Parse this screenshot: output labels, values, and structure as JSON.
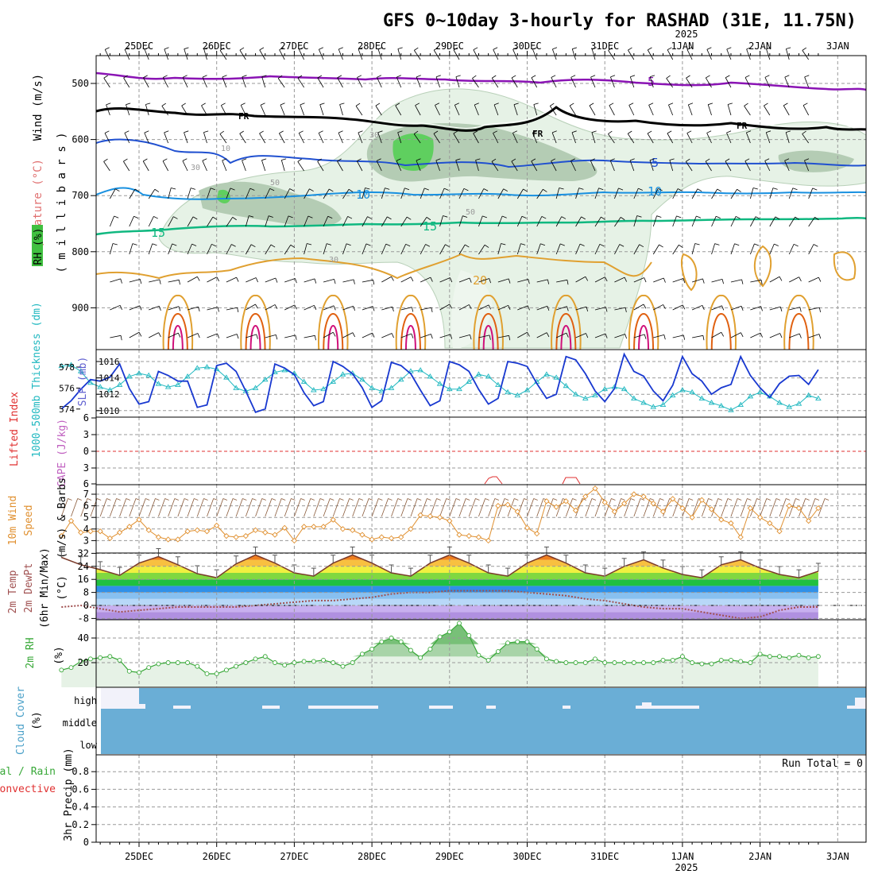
{
  "title": "GFS 0~10day 3-hourly for RASHAD (31E, 11.75N)",
  "top_year": "2025",
  "bottom_year": "2025",
  "date_labels": [
    "25DEC",
    "26DEC",
    "27DEC",
    "28DEC",
    "29DEC",
    "30DEC",
    "31DEC",
    "1JAN",
    "2JAN",
    "3JAN"
  ],
  "colors": {
    "temp_purple": "#8a14b4",
    "temp_black": "#000000",
    "temp_blue": "#2050d0",
    "temp_lightblue": "#1890e0",
    "temp_green": "#10b880",
    "temp_orange": "#e0a030",
    "temp_red": "#e06010",
    "temp_magenta": "#d0107a",
    "rh_light": "#e6f2e6",
    "rh_mid": "#b4ccb4",
    "rh_dark": "#5fcf5f",
    "slp": "#1838d0",
    "thickness": "#20b8c0",
    "lifted_index": "#e03030",
    "wind10": "#e09030",
    "dewpoint": "#a05050",
    "rh2m": "#38a838",
    "cloud": "#6aaed6",
    "cloud_gap": "#f0f0f8"
  },
  "panels": {
    "upper": {
      "labels": {
        "wind": "Wind (m/s)",
        "temperature": "Temperature (°C)",
        "rh": "RH (%)",
        "millibars": "( m i l l i b a r s )"
      },
      "y_ticks": [
        "500",
        "600",
        "700",
        "800",
        "900"
      ],
      "contour_labels": {
        "fr": "FR",
        "t5": "5",
        "t10": "10",
        "t15": "15",
        "t20": "20",
        "rh10": "10",
        "rh30": "30",
        "rh50": "50"
      }
    },
    "slp": {
      "labels": {
        "thickness": "1000-500mb Thickness (dm)",
        "slp": "SLP (mb)"
      },
      "thickness_ticks": [
        "578",
        "576",
        "574"
      ],
      "slp_ticks": [
        "1016",
        "1014",
        "1012",
        "1010"
      ]
    },
    "li": {
      "labels": {
        "li": "Lifted Index",
        "cape": "CAPE (J/kg)"
      },
      "ticks": [
        "6",
        "3",
        "0",
        "3",
        "6"
      ]
    },
    "wind10": {
      "labels": {
        "title": "10m Wind",
        "speed": "Speed",
        "barbs": "(m/s) & Barbs"
      },
      "ticks": [
        "7",
        "6",
        "5",
        "4",
        "3"
      ]
    },
    "temp2m": {
      "labels": {
        "t": "2m Temp",
        "d": "2m DewPt",
        "m": "(6hr Min/Max)",
        "unit": "(°C)"
      },
      "ticks": [
        "32",
        "24",
        "16",
        "8",
        "0",
        "-8"
      ]
    },
    "rh2m": {
      "labels": {
        "title": "2m RH",
        "unit": "(%)"
      },
      "ticks": [
        "40",
        "20"
      ]
    },
    "cloud": {
      "labels": {
        "title": "Cloud Cover",
        "unit": "(%)"
      },
      "levels": [
        "high",
        "middle",
        "low"
      ]
    },
    "precip": {
      "labels": {
        "total": "Total / Rain",
        "conv": "Convective",
        "title": "3hr Precip (mm)"
      },
      "run_total": "Run Total = 0",
      "ticks": [
        "0.8",
        "0.6",
        "0.4",
        "0.2",
        "0"
      ]
    }
  },
  "chart_data": [
    {
      "type": "line",
      "title": "SLP (mb)",
      "x_unit": "forecast hour from 00Z 24DEC 2024",
      "x": [
        12,
        15,
        18,
        21,
        24,
        27,
        30,
        33,
        36,
        39,
        42,
        45,
        48,
        51,
        54,
        57,
        60,
        63,
        66,
        69,
        72,
        75,
        78,
        81,
        84,
        87,
        90,
        93,
        96,
        99,
        102,
        105,
        108,
        111,
        114,
        117,
        120,
        123,
        126,
        129,
        132,
        135,
        138,
        141,
        144,
        147,
        150,
        153,
        156,
        159,
        162,
        165,
        168,
        171,
        174,
        177,
        180,
        183,
        186,
        189,
        192,
        195,
        198,
        201,
        204,
        207,
        210,
        213,
        216,
        219,
        222,
        225,
        228,
        231,
        234,
        237,
        240,
        243,
        246
      ],
      "series": [
        {
          "name": "SLP",
          "values": [
            1010.2,
            1011.2,
            1012.6,
            1013.8,
            1013.6,
            1014.1,
            1015.7,
            1012.7,
            1010.8,
            1011.1,
            1014.8,
            1014.3,
            1013.6,
            1013.6,
            1010.4,
            1010.7,
            1015.5,
            1015.8,
            1014.8,
            1012.4,
            1009.8,
            1010.2,
            1015.7,
            1015.2,
            1014.4,
            1012.2,
            1010.6,
            1011.1,
            1016.0,
            1015.4,
            1014.5,
            1012.8,
            1010.4,
            1011.2,
            1015.9,
            1015.5,
            1014.5,
            1012.5,
            1010.6,
            1011.2,
            1016.0,
            1015.6,
            1014.8,
            1012.6,
            1010.8,
            1011.5,
            1016.0,
            1015.8,
            1015.4,
            1013.3,
            1011.5,
            1012.0,
            1016.6,
            1016.2,
            1014.5,
            1012.4,
            1011.1,
            1012.7,
            1016.9,
            1014.8,
            1014.2,
            1012.4,
            1011.2,
            1013.1,
            1016.6,
            1014.5,
            1013.6,
            1012.0,
            1012.8,
            1013.2,
            1016.6,
            1014.3,
            1012.8,
            1011.6,
            1013.3,
            1014.2,
            1014.3,
            1013.2,
            1015.0
          ]
        }
      ],
      "ylim": [
        1009.5,
        1017.5
      ]
    },
    {
      "type": "line",
      "title": "1000-500mb Thickness (dm)",
      "x_unit": "forecast hour from 00Z 24DEC 2024",
      "x": [
        12,
        15,
        18,
        21,
        24,
        27,
        30,
        33,
        36,
        39,
        42,
        45,
        48,
        51,
        54,
        57,
        60,
        63,
        66,
        69,
        72,
        75,
        78,
        81,
        84,
        87,
        90,
        93,
        96,
        99,
        102,
        105,
        108,
        111,
        114,
        117,
        120,
        123,
        126,
        129,
        132,
        135,
        138,
        141,
        144,
        147,
        150,
        153,
        156,
        159,
        162,
        165,
        168,
        171,
        174,
        177,
        180,
        183,
        186,
        189,
        192,
        195,
        198,
        201,
        204,
        207,
        210,
        213,
        216,
        219,
        222,
        225,
        228,
        231,
        234,
        237,
        240,
        243,
        246
      ],
      "series": [
        {
          "name": "Thickness",
          "values": [
            578.1,
            578.2,
            577.6,
            576.5,
            576.1,
            575.8,
            576.3,
            577.1,
            577.4,
            577.2,
            576.4,
            576.1,
            576.3,
            577.1,
            577.9,
            578.0,
            577.8,
            577.0,
            576.0,
            575.7,
            576.0,
            576.8,
            577.5,
            577.7,
            577.4,
            576.6,
            575.8,
            575.9,
            576.6,
            577.3,
            577.4,
            576.8,
            576.0,
            575.7,
            576.0,
            576.8,
            577.6,
            577.7,
            577.1,
            576.4,
            575.9,
            575.9,
            576.6,
            577.3,
            577.1,
            576.3,
            575.6,
            575.3,
            575.8,
            576.6,
            577.3,
            577.0,
            576.2,
            575.4,
            575.0,
            575.3,
            575.9,
            576.1,
            575.9,
            575.0,
            574.6,
            574.2,
            574.4,
            575.3,
            575.8,
            575.6,
            575.0,
            574.6,
            574.3,
            573.9,
            574.4,
            575.2,
            575.6,
            575.2,
            574.6,
            574.2,
            574.5,
            575.3,
            575.0
          ]
        }
      ],
      "ylim": [
        573.4,
        579.0
      ]
    },
    {
      "type": "line",
      "title": "10m Wind Speed (m/s)",
      "x_unit": "forecast hour from 00Z 24DEC 2024",
      "x": [
        12,
        15,
        18,
        21,
        24,
        27,
        30,
        33,
        36,
        39,
        42,
        45,
        48,
        51,
        54,
        57,
        60,
        63,
        66,
        69,
        72,
        75,
        78,
        81,
        84,
        87,
        90,
        93,
        96,
        99,
        102,
        105,
        108,
        111,
        114,
        117,
        120,
        123,
        126,
        129,
        132,
        135,
        138,
        141,
        144,
        147,
        150,
        153,
        156,
        159,
        162,
        165,
        168,
        171,
        174,
        177,
        180,
        183,
        186,
        189,
        192,
        195,
        198,
        201,
        204,
        207,
        210,
        213,
        216,
        219,
        222,
        225,
        228,
        231,
        234,
        237,
        240,
        243,
        246
      ],
      "series": [
        {
          "name": "10m Wind",
          "values": [
            3.4,
            4.7,
            3.7,
            3.8,
            3.8,
            3.2,
            3.7,
            4.2,
            4.8,
            3.9,
            3.3,
            3.1,
            3.1,
            3.8,
            3.9,
            3.8,
            4.3,
            3.4,
            3.3,
            3.4,
            3.9,
            3.7,
            3.5,
            4.1,
            3.0,
            4.2,
            4.2,
            4.2,
            4.8,
            4.0,
            3.9,
            3.5,
            3.1,
            3.3,
            3.2,
            3.3,
            4.0,
            5.2,
            5.1,
            5.0,
            4.7,
            3.5,
            3.4,
            3.3,
            3.0,
            6.0,
            6.1,
            5.5,
            4.1,
            3.6,
            6.4,
            5.9,
            6.4,
            5.6,
            6.8,
            7.5,
            6.3,
            5.5,
            6.2,
            7.0,
            6.8,
            6.2,
            5.5,
            6.6,
            5.8,
            5.0,
            6.5,
            5.7,
            4.8,
            4.5,
            3.3,
            5.8,
            5.0,
            4.5,
            3.8,
            6.0,
            5.8,
            4.7,
            5.8
          ]
        }
      ],
      "ylim": [
        2.6,
        7.8
      ]
    },
    {
      "type": "area",
      "title": "2m Temp (°C)",
      "x_unit": "forecast hour from 00Z 24DEC 2024",
      "x": [
        12,
        18,
        24,
        30,
        36,
        42,
        48,
        54,
        60,
        66,
        72,
        78,
        84,
        90,
        96,
        102,
        108,
        114,
        120,
        126,
        132,
        138,
        144,
        150,
        156,
        162,
        168,
        174,
        180,
        186,
        192,
        198,
        204,
        210,
        216,
        222,
        228,
        234,
        240,
        246
      ],
      "series": [
        {
          "name": "2m Temp",
          "values": [
            29.5,
            25,
            22,
            18.5,
            26,
            30,
            25,
            19.5,
            17,
            25.5,
            31,
            26,
            20,
            18,
            26,
            31,
            26,
            20,
            18,
            26,
            31,
            26,
            20,
            18,
            26,
            31,
            26,
            20,
            18,
            24,
            28,
            23,
            19,
            17,
            25,
            28,
            23,
            19,
            17,
            21
          ]
        },
        {
          "name": "2m DewPt",
          "values": [
            -1,
            0,
            -2,
            -4,
            -3,
            -2,
            -1,
            -1,
            -1,
            -1,
            0,
            1,
            2,
            3,
            3,
            4,
            5,
            7,
            8,
            8,
            9,
            9,
            9,
            9,
            8,
            7,
            6,
            4,
            3,
            1,
            -1,
            -2,
            -2,
            -4,
            -6,
            -8,
            -7,
            -3,
            -1,
            -1
          ]
        }
      ],
      "ylim": [
        -12,
        34
      ]
    },
    {
      "type": "area",
      "title": "2m RH (%)",
      "x_unit": "forecast hour from 00Z 24DEC 2024",
      "x": [
        12,
        15,
        18,
        21,
        24,
        27,
        30,
        33,
        36,
        39,
        42,
        45,
        48,
        51,
        54,
        57,
        60,
        63,
        66,
        69,
        72,
        75,
        78,
        81,
        84,
        87,
        90,
        93,
        96,
        99,
        102,
        105,
        108,
        111,
        114,
        117,
        120,
        123,
        126,
        129,
        132,
        135,
        138,
        141,
        144,
        147,
        150,
        153,
        156,
        159,
        162,
        165,
        168,
        171,
        174,
        177,
        180,
        183,
        186,
        189,
        192,
        195,
        198,
        201,
        204,
        207,
        210,
        213,
        216,
        219,
        222,
        225,
        228,
        231,
        234,
        237,
        240,
        243,
        246
      ],
      "series": [
        {
          "name": "2m RH",
          "values": [
            14,
            16,
            21,
            23,
            24,
            25,
            22,
            13,
            12,
            16,
            19,
            20,
            20,
            20,
            17,
            11,
            11,
            14,
            17,
            20,
            23,
            25,
            20,
            18,
            20,
            21,
            21,
            22,
            20,
            17,
            20,
            27,
            31,
            37,
            40,
            37,
            30,
            24,
            31,
            41,
            45,
            52,
            42,
            26,
            22,
            29,
            36,
            37,
            37,
            31,
            23,
            21,
            20,
            20,
            20,
            23,
            20,
            20,
            20,
            20,
            20,
            20,
            22,
            22,
            25,
            20,
            19,
            19,
            22,
            22,
            21,
            20,
            27,
            25,
            25,
            24,
            26,
            24,
            25
          ]
        }
      ],
      "ylim": [
        0,
        55
      ]
    },
    {
      "type": "line",
      "title": "3hr Precip (mm)",
      "x_unit": "forecast hour from 00Z 24DEC 2024",
      "x": [
        12,
        246
      ],
      "series": [
        {
          "name": "Total / Rain",
          "values": [
            0,
            0
          ]
        }
      ],
      "ylim": [
        0,
        1.0
      ]
    }
  ]
}
